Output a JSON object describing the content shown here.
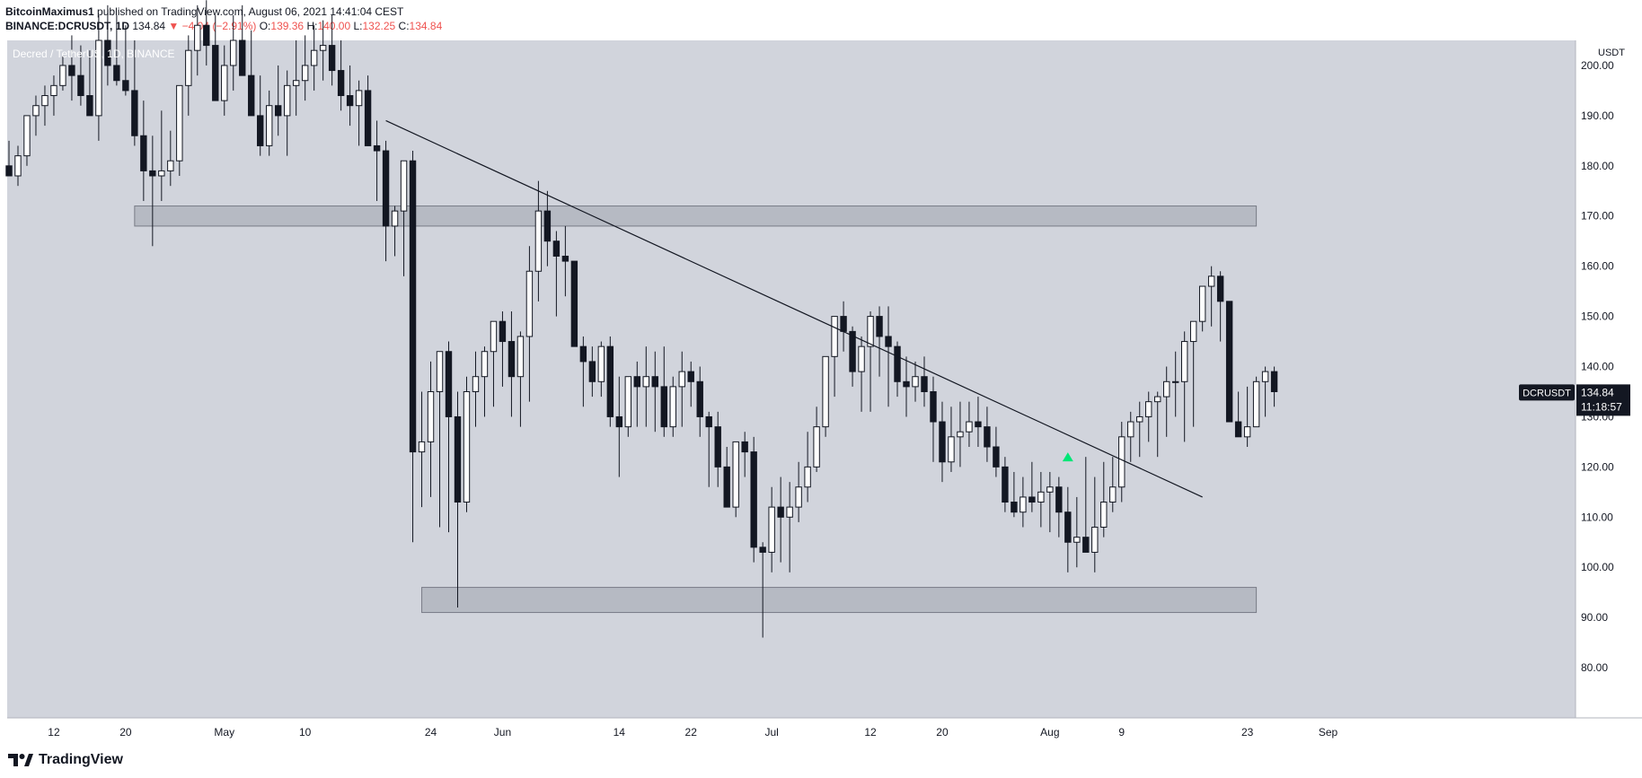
{
  "header": {
    "author": "BitcoinMaximus1",
    "published_text": "published on TradingView.com, August 06, 2021 14:41:04 CEST",
    "symbol_line": "BINANCE:DCRUSDT, 1D",
    "last_value": "134.84",
    "change_text": "−4.04 (−2.91%)",
    "o_label": "O:",
    "o_value": "139.36",
    "h_label": "H:",
    "h_value": "140.00",
    "l_label": "L:",
    "l_value": "132.25",
    "c_label": "C:",
    "c_value": "134.84"
  },
  "chart_data": {
    "type": "candlestick",
    "title": "Decred / TetherUS, 1D, BINANCE",
    "currency": "USDT",
    "ylim": [
      70,
      205
    ],
    "y_ticks": [
      80,
      90,
      100,
      110,
      120,
      130,
      140,
      150,
      160,
      170,
      180,
      190,
      200
    ],
    "x_ticks": [
      "12",
      "20",
      "May",
      "10",
      "24",
      "Jun",
      "14",
      "22",
      "Jul",
      "12",
      "20",
      "Aug",
      "9",
      "23",
      "Sep"
    ],
    "last_price_label": {
      "symbol": "DCRUSDT",
      "price": "134.84",
      "countdown": "11:18:57"
    },
    "candles_ohlc": [
      [
        180,
        185,
        178,
        178
      ],
      [
        178,
        184,
        176,
        182
      ],
      [
        182,
        190,
        180,
        190
      ],
      [
        190,
        194,
        186,
        192
      ],
      [
        192,
        196,
        188,
        194
      ],
      [
        194,
        198,
        190,
        196
      ],
      [
        196,
        202,
        195,
        200
      ],
      [
        200,
        206,
        193,
        198
      ],
      [
        198,
        204,
        192,
        194
      ],
      [
        194,
        203,
        190,
        190
      ],
      [
        190,
        210,
        185,
        205
      ],
      [
        205,
        212,
        196,
        200
      ],
      [
        200,
        210,
        196,
        197
      ],
      [
        197,
        208,
        194,
        195
      ],
      [
        195,
        205,
        184,
        186
      ],
      [
        186,
        193,
        173,
        179
      ],
      [
        179,
        186,
        164,
        178
      ],
      [
        178,
        191,
        173,
        179
      ],
      [
        179,
        187,
        176,
        181
      ],
      [
        181,
        196,
        178,
        196
      ],
      [
        196,
        206,
        190,
        203
      ],
      [
        203,
        212,
        198,
        208
      ],
      [
        208,
        213,
        200,
        204
      ],
      [
        204,
        210,
        194,
        193
      ],
      [
        193,
        204,
        190,
        200
      ],
      [
        200,
        210,
        195,
        205
      ],
      [
        205,
        212,
        198,
        198
      ],
      [
        198,
        207,
        192,
        190
      ],
      [
        190,
        198,
        182,
        184
      ],
      [
        184,
        195,
        182,
        192
      ],
      [
        192,
        200,
        186,
        190
      ],
      [
        190,
        199,
        182,
        196
      ],
      [
        196,
        205,
        190,
        197
      ],
      [
        197,
        206,
        193,
        200
      ],
      [
        200,
        208,
        195,
        203
      ],
      [
        203,
        209,
        197,
        204
      ],
      [
        204,
        210,
        196,
        199
      ],
      [
        199,
        205,
        191,
        194
      ],
      [
        194,
        200,
        188,
        192
      ],
      [
        192,
        197,
        184,
        195
      ],
      [
        195,
        198,
        187,
        184
      ],
      [
        184,
        189,
        173,
        183
      ],
      [
        183,
        185,
        161,
        168
      ],
      [
        168,
        172,
        162,
        171
      ],
      [
        171,
        175,
        158,
        181
      ],
      [
        181,
        183,
        105,
        123
      ],
      [
        123,
        135,
        112,
        125
      ],
      [
        125,
        141,
        114,
        135
      ],
      [
        135,
        140,
        108,
        143
      ],
      [
        143,
        145,
        107,
        130
      ],
      [
        130,
        135,
        92,
        113
      ],
      [
        113,
        138,
        111,
        135
      ],
      [
        135,
        143,
        128,
        138
      ],
      [
        138,
        144,
        130,
        143
      ],
      [
        143,
        148,
        132,
        149
      ],
      [
        149,
        151,
        136,
        145
      ],
      [
        145,
        151,
        130,
        138
      ],
      [
        138,
        147,
        128,
        146
      ],
      [
        146,
        164,
        133,
        159
      ],
      [
        159,
        177,
        153,
        171
      ],
      [
        171,
        175,
        160,
        165
      ],
      [
        165,
        167,
        150,
        162
      ],
      [
        162,
        168,
        154,
        161
      ],
      [
        161,
        160,
        150,
        144
      ],
      [
        144,
        146,
        132,
        141
      ],
      [
        141,
        144,
        134,
        137
      ],
      [
        137,
        145,
        134,
        144
      ],
      [
        144,
        146,
        128,
        130
      ],
      [
        130,
        138,
        118,
        128
      ],
      [
        128,
        138,
        126,
        138
      ],
      [
        138,
        141,
        128,
        136
      ],
      [
        136,
        144,
        128,
        138
      ],
      [
        138,
        143,
        127,
        136
      ],
      [
        136,
        144,
        126,
        128
      ],
      [
        128,
        138,
        126,
        136
      ],
      [
        136,
        143,
        128,
        139
      ],
      [
        139,
        141,
        132,
        137
      ],
      [
        137,
        140,
        126,
        130
      ],
      [
        130,
        131,
        116,
        128
      ],
      [
        128,
        131,
        116,
        120
      ],
      [
        120,
        124,
        113,
        112
      ],
      [
        112,
        123,
        110,
        125
      ],
      [
        125,
        127,
        118,
        123
      ],
      [
        123,
        126,
        101,
        104
      ],
      [
        104,
        105,
        86,
        103
      ],
      [
        103,
        116,
        99,
        112
      ],
      [
        112,
        118,
        101,
        110
      ],
      [
        110,
        117,
        99,
        112
      ],
      [
        112,
        121,
        109,
        116
      ],
      [
        116,
        127,
        113,
        120
      ],
      [
        120,
        132,
        119,
        128
      ],
      [
        128,
        141,
        126,
        142
      ],
      [
        142,
        149,
        134,
        150
      ],
      [
        150,
        153,
        143,
        147
      ],
      [
        147,
        148,
        136,
        139
      ],
      [
        139,
        146,
        131,
        144
      ],
      [
        144,
        151,
        131,
        150
      ],
      [
        150,
        152,
        138,
        146
      ],
      [
        146,
        152,
        132,
        144
      ],
      [
        144,
        145,
        134,
        137
      ],
      [
        137,
        142,
        130,
        136
      ],
      [
        136,
        141,
        133,
        138
      ],
      [
        138,
        142,
        132,
        135
      ],
      [
        135,
        138,
        121,
        129
      ],
      [
        129,
        133,
        117,
        121
      ],
      [
        121,
        132,
        119,
        126
      ],
      [
        126,
        133,
        120,
        127
      ],
      [
        127,
        133,
        124,
        129
      ],
      [
        129,
        134,
        124,
        128
      ],
      [
        128,
        132,
        121,
        124
      ],
      [
        124,
        128,
        118,
        120
      ],
      [
        120,
        122,
        111,
        113
      ],
      [
        113,
        119,
        110,
        111
      ],
      [
        111,
        118,
        108,
        114
      ],
      [
        114,
        121,
        111,
        113
      ],
      [
        113,
        119,
        108,
        115
      ],
      [
        115,
        119,
        107,
        116
      ],
      [
        116,
        118,
        106,
        111
      ],
      [
        111,
        116,
        99,
        105
      ],
      [
        105,
        114,
        100,
        106
      ],
      [
        106,
        122,
        103,
        103
      ],
      [
        103,
        118,
        99,
        108
      ],
      [
        108,
        121,
        106,
        113
      ],
      [
        113,
        122,
        111,
        116
      ],
      [
        116,
        129,
        113,
        126
      ],
      [
        126,
        131,
        121,
        129
      ],
      [
        129,
        133,
        122,
        130
      ],
      [
        130,
        135,
        125,
        133
      ],
      [
        133,
        135,
        122,
        134
      ],
      [
        134,
        140,
        126,
        137
      ],
      [
        137,
        143,
        130,
        137
      ],
      [
        137,
        147,
        125,
        145
      ],
      [
        145,
        148,
        128,
        149
      ],
      [
        149,
        153,
        147,
        156
      ],
      [
        156,
        160,
        148,
        158
      ],
      [
        158,
        159,
        145,
        153
      ],
      [
        153,
        151,
        130,
        129
      ],
      [
        129,
        135,
        126,
        126
      ],
      [
        126,
        136,
        124,
        128
      ],
      [
        128,
        138,
        131,
        137
      ],
      [
        137,
        140,
        130,
        139
      ],
      [
        139,
        140,
        132,
        135
      ]
    ],
    "trendline": {
      "start": [
        "2021-05-19",
        189
      ],
      "end": [
        "2021-08-18",
        114
      ]
    },
    "resistance_zone": {
      "from": "2021-04-21",
      "to": "2021-08-24",
      "low": 168,
      "high": 172
    },
    "support_zone": {
      "from": "2021-05-23",
      "to": "2021-08-24",
      "low": 91,
      "high": 96
    },
    "marker": {
      "type": "triangle-up",
      "date": "2021-08-03",
      "price": 122
    }
  },
  "footer": {
    "brand": "TradingView"
  },
  "colors": {
    "bg": "#d1d4dc",
    "candle_up": "#ffffff",
    "candle_down": "#131722",
    "zone": "#b2b5be",
    "marker": "#00e676"
  }
}
